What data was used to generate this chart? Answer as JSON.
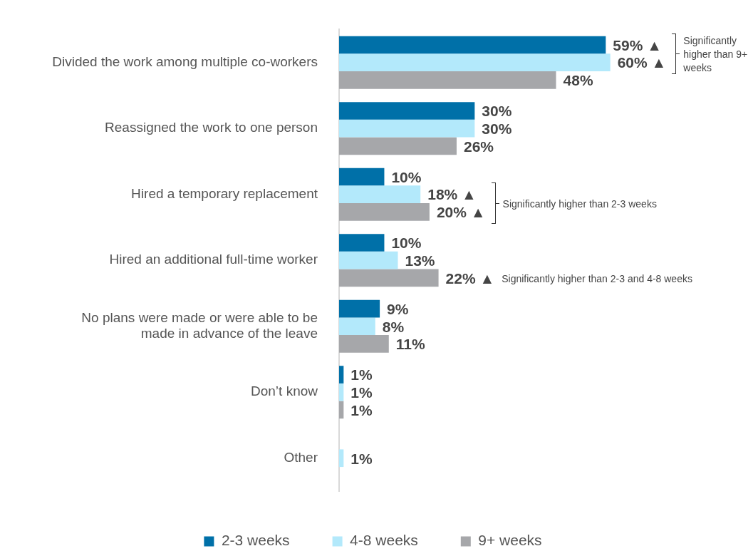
{
  "chart_data": {
    "type": "bar",
    "orientation": "horizontal",
    "categories": [
      "Divided the work among multiple co-workers",
      "Reassigned the work to one person",
      "Hired a temporary replacement",
      "Hired an additional full-time worker",
      "No plans were made or were able to be made in advance of the leave",
      "Don’t know",
      "Other"
    ],
    "series": [
      {
        "name": "2-3 weeks",
        "color": "#0070a8",
        "values": [
          59,
          30,
          10,
          10,
          9,
          1,
          null
        ],
        "value_labels": [
          "59% ▲",
          "30%",
          "10%",
          "10%",
          "9%",
          "1%",
          null
        ]
      },
      {
        "name": "4-8 weeks",
        "color": "#b3e9fb",
        "values": [
          60,
          30,
          18,
          13,
          8,
          1,
          1
        ],
        "value_labels": [
          "60% ▲",
          "30%",
          "18% ▲",
          "13%",
          "8%",
          "1%",
          "1%"
        ]
      },
      {
        "name": "9+ weeks",
        "color": "#a6a7aa",
        "values": [
          48,
          26,
          20,
          22,
          11,
          1,
          null
        ],
        "value_labels": [
          "48%",
          "26%",
          "20% ▲",
          "22% ▲",
          "11%",
          "1%",
          null
        ]
      }
    ],
    "annotations": [
      "Significantly higher than 9+ weeks",
      "Significantly higher than 2-3 weeks",
      "Significantly higher than 2-3 and 4-8 weeks"
    ],
    "legend": "bottom",
    "grid": false
  }
}
